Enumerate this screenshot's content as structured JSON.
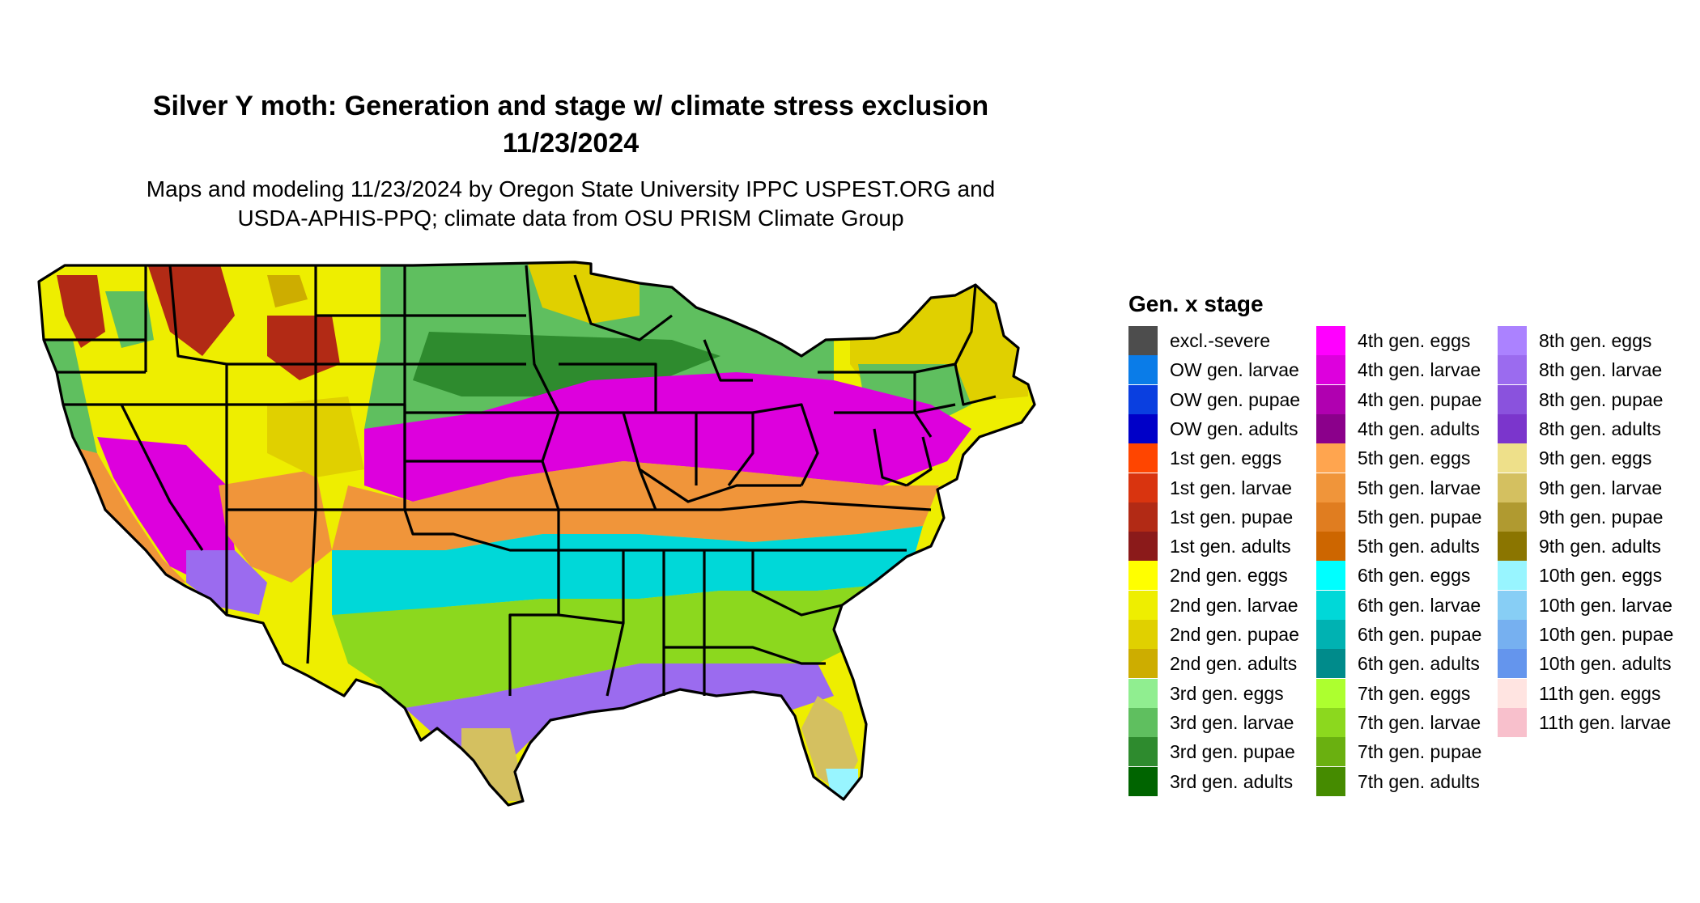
{
  "title": {
    "line1": "Silver Y moth: Generation and stage w/ climate stress exclusion",
    "line2": "11/23/2024"
  },
  "subtitle": {
    "line1": "Maps and modeling 11/23/2024 by Oregon State University IPPC USPEST.ORG and",
    "line2": "USDA-APHIS-PPQ; climate data from OSU PRISM Climate Group"
  },
  "legend": {
    "title": "Gen. x stage",
    "columns": [
      [
        {
          "label": "excl.-severe",
          "color": "#4d4d4d"
        },
        {
          "label": "OW gen. larvae",
          "color": "#0a7ce8"
        },
        {
          "label": "OW gen. pupae",
          "color": "#0a3fe0"
        },
        {
          "label": "OW gen. adults",
          "color": "#0000c8"
        },
        {
          "label": "1st gen. eggs",
          "color": "#ff4500"
        },
        {
          "label": "1st gen. larvae",
          "color": "#d9340f"
        },
        {
          "label": "1st gen. pupae",
          "color": "#b22a15"
        },
        {
          "label": "1st gen. adults",
          "color": "#8b1a1a"
        },
        {
          "label": "2nd gen. eggs",
          "color": "#ffff00"
        },
        {
          "label": "2nd gen. larvae",
          "color": "#eeee00"
        },
        {
          "label": "2nd gen. pupae",
          "color": "#e0d000"
        },
        {
          "label": "2nd gen. adults",
          "color": "#cdad00"
        },
        {
          "label": "3rd gen. eggs",
          "color": "#90ee90"
        },
        {
          "label": "3rd gen. larvae",
          "color": "#5fbf5f"
        },
        {
          "label": "3rd gen. pupae",
          "color": "#2e8b2e"
        },
        {
          "label": "3rd gen. adults",
          "color": "#006400"
        }
      ],
      [
        {
          "label": "4th gen. eggs",
          "color": "#ff00ff"
        },
        {
          "label": "4th gen. larvae",
          "color": "#dd00dd"
        },
        {
          "label": "4th gen. pupae",
          "color": "#b000b0"
        },
        {
          "label": "4th gen. adults",
          "color": "#8b008b"
        },
        {
          "label": "5th gen. eggs",
          "color": "#ffa54f"
        },
        {
          "label": "5th gen. larvae",
          "color": "#f0953a"
        },
        {
          "label": "5th gen. pupae",
          "color": "#e07d20"
        },
        {
          "label": "5th gen. adults",
          "color": "#cd6600"
        },
        {
          "label": "6th gen. eggs",
          "color": "#00ffff"
        },
        {
          "label": "6th gen. larvae",
          "color": "#00d8d8"
        },
        {
          "label": "6th gen. pupae",
          "color": "#00b2b2"
        },
        {
          "label": "6th gen. adults",
          "color": "#008b8b"
        },
        {
          "label": "7th gen. eggs",
          "color": "#adff2f"
        },
        {
          "label": "7th gen. larvae",
          "color": "#8cd81e"
        },
        {
          "label": "7th gen. pupae",
          "color": "#6ab010"
        },
        {
          "label": "7th gen. adults",
          "color": "#458b00"
        }
      ],
      [
        {
          "label": "8th gen. eggs",
          "color": "#ab82ff"
        },
        {
          "label": "8th gen. larvae",
          "color": "#9b6bef"
        },
        {
          "label": "8th gen. pupae",
          "color": "#8a52dd"
        },
        {
          "label": "8th gen. adults",
          "color": "#7b35cc"
        },
        {
          "label": "9th gen. eggs",
          "color": "#eee08a"
        },
        {
          "label": "9th gen. larvae",
          "color": "#d4c060"
        },
        {
          "label": "9th gen. pupae",
          "color": "#b09a30"
        },
        {
          "label": "9th gen. adults",
          "color": "#8b7500"
        },
        {
          "label": "10th gen. eggs",
          "color": "#98f5ff"
        },
        {
          "label": "10th gen. larvae",
          "color": "#87cef5"
        },
        {
          "label": "10th gen. pupae",
          "color": "#76b0f0"
        },
        {
          "label": "10th gen. adults",
          "color": "#6495ed"
        },
        {
          "label": "11th gen. eggs",
          "color": "#ffe4e1"
        },
        {
          "label": "11th gen. larvae",
          "color": "#f8c0cc"
        }
      ]
    ]
  }
}
